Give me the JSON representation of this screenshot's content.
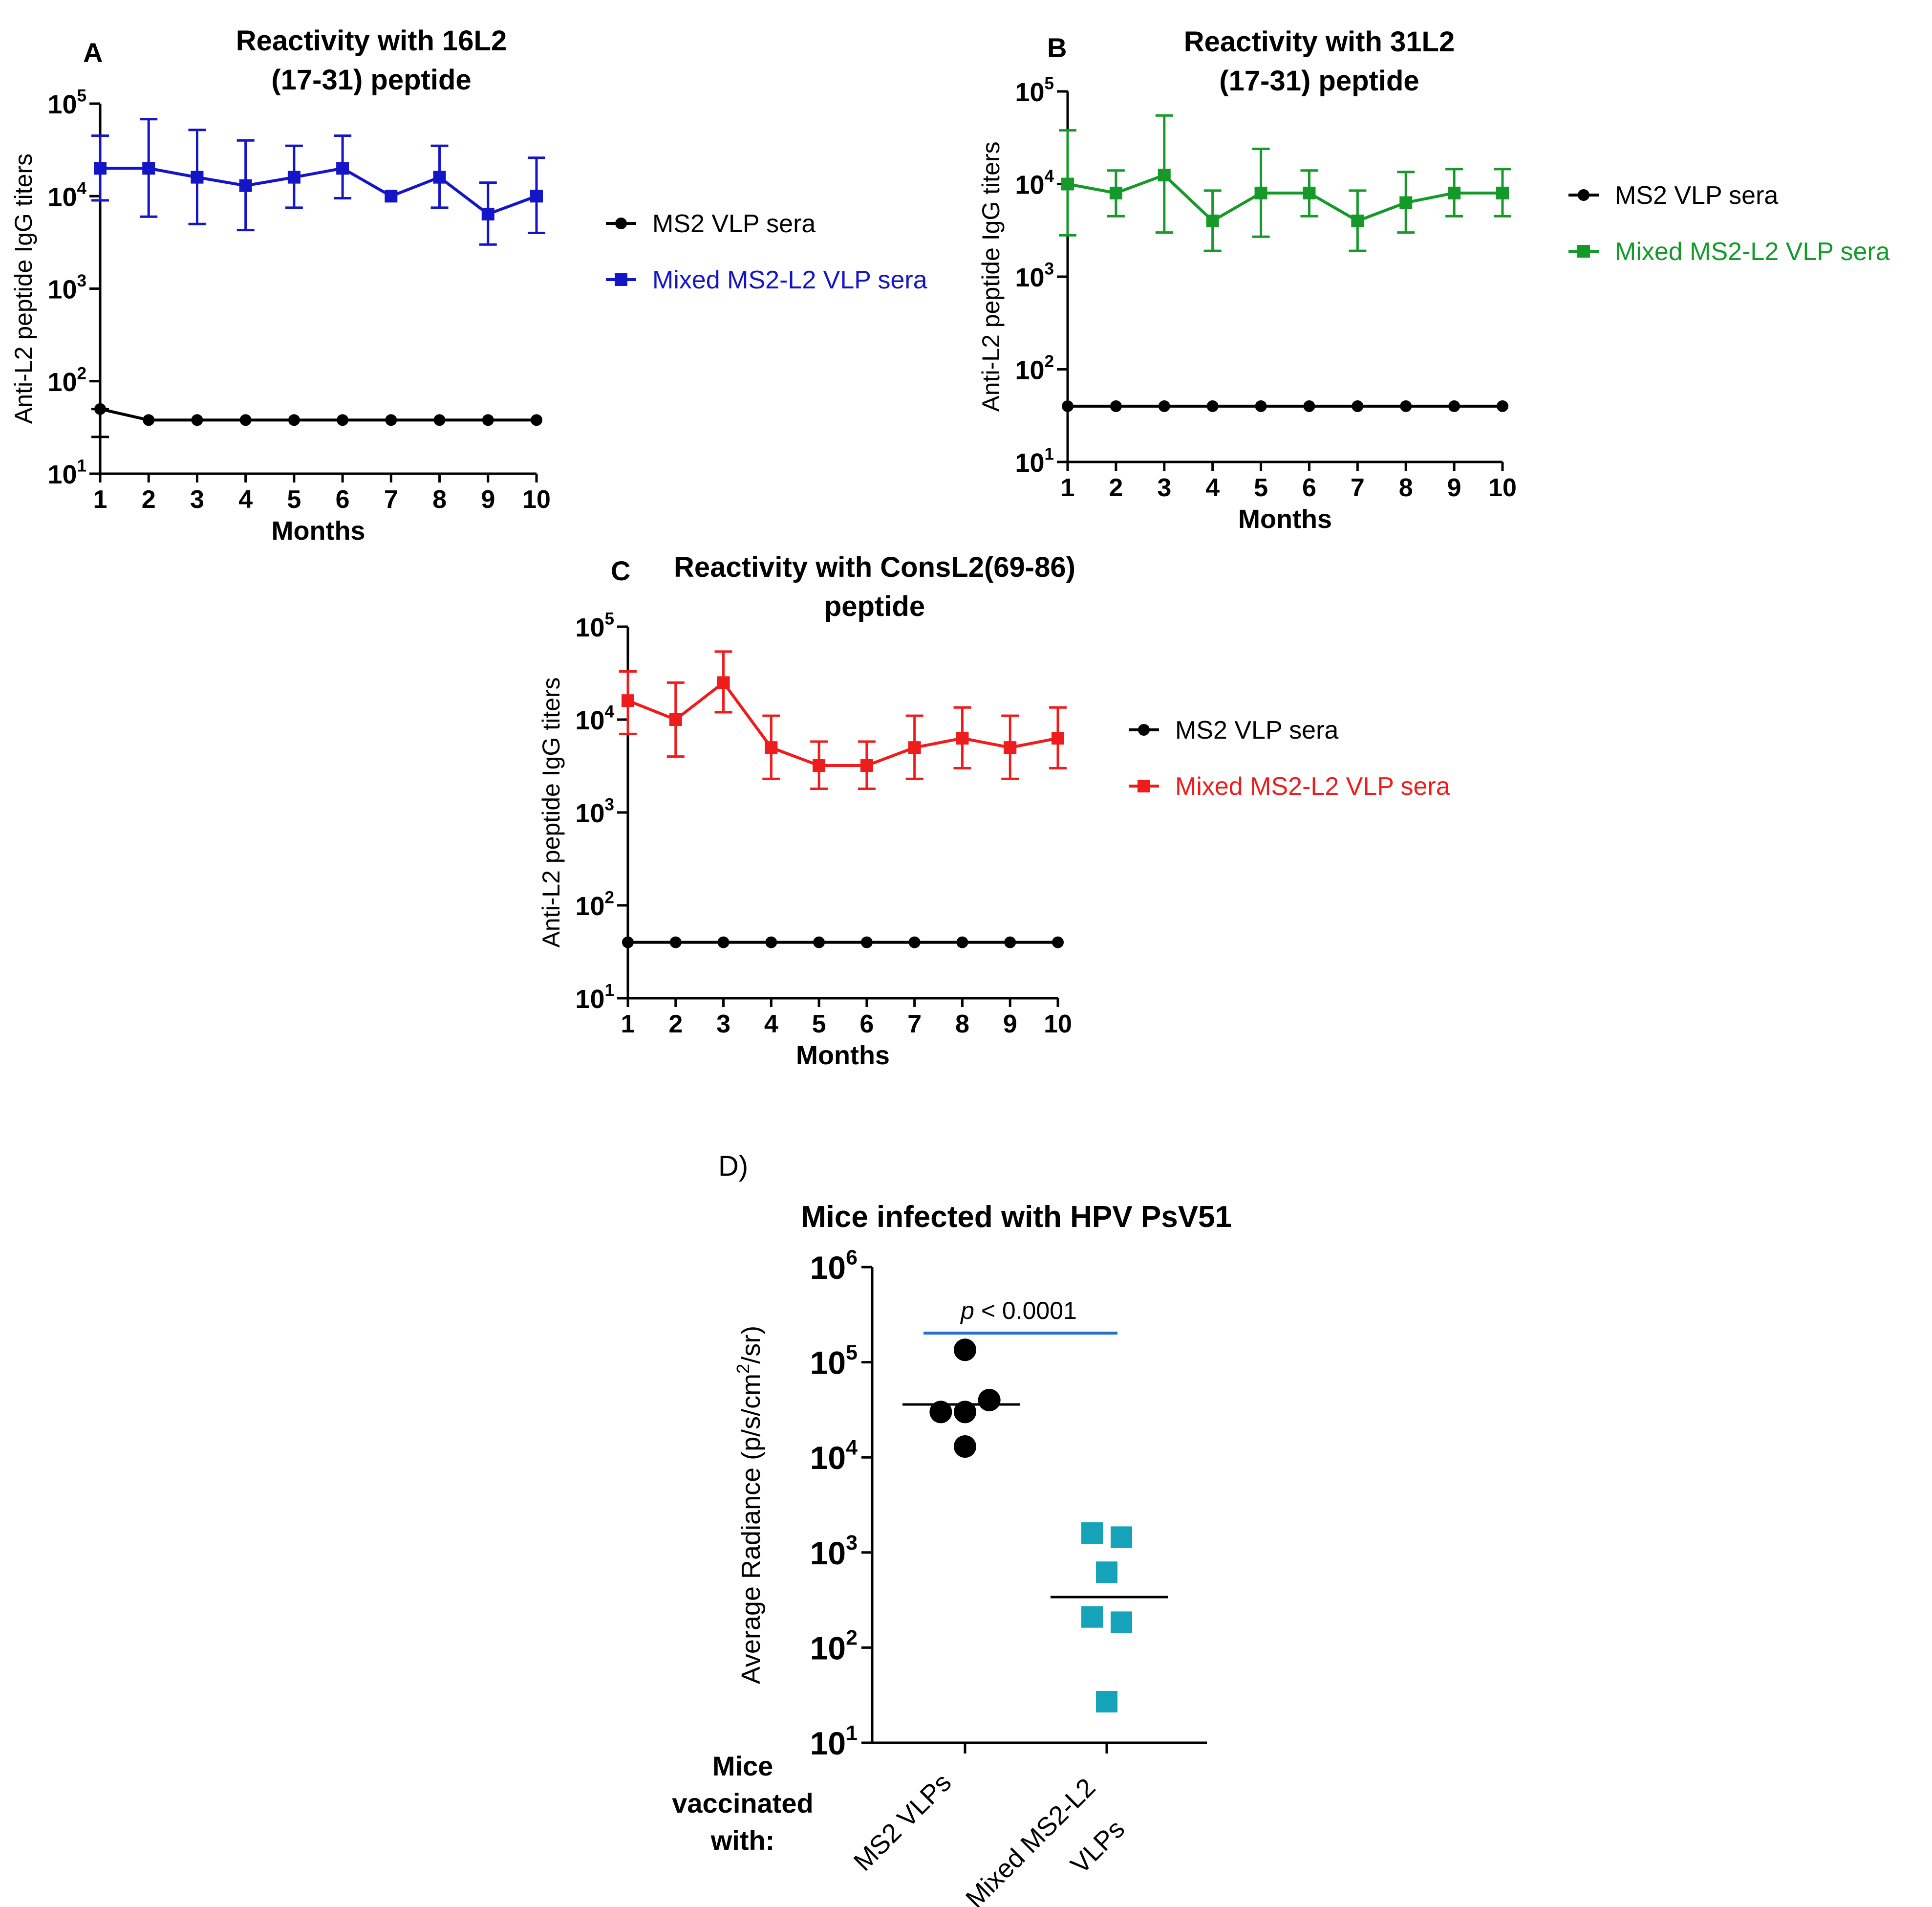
{
  "figure": {
    "panels": [
      {
        "key": "A",
        "label": "A",
        "title_lines": [
          "Reactivity with 16L2",
          "(17-31) peptide"
        ]
      },
      {
        "key": "B",
        "label": "B",
        "title_lines": [
          "Reactivity with 31L2",
          "(17-31) peptide"
        ]
      },
      {
        "key": "C",
        "label": "C",
        "title_lines": [
          "Reactivity with ConsL2(69-86)",
          "peptide"
        ]
      },
      {
        "key": "D",
        "label": "D)",
        "title_lines": [
          "Mice infected with HPV PsV51"
        ]
      }
    ]
  },
  "chart_data": [
    {
      "panel": "A",
      "type": "line",
      "title": "Reactivity with 16L2 (17-31) peptide",
      "xlabel": "Months",
      "ylabel": "Anti-L2 peptide IgG titers",
      "yscale": "log",
      "ylim": [
        10,
        100000
      ],
      "x": [
        1,
        2,
        3,
        4,
        5,
        6,
        7,
        8,
        9,
        10
      ],
      "series": [
        {
          "name": "MS2 VLP sera",
          "color": "#000000",
          "marker": "circle",
          "values": [
            50,
            38,
            38,
            38,
            38,
            38,
            38,
            38,
            38,
            38
          ],
          "err_low": [
            25,
            38,
            38,
            38,
            38,
            38,
            38,
            38,
            38,
            38
          ],
          "err_high": [
            50,
            38,
            38,
            38,
            38,
            38,
            38,
            38,
            38,
            38
          ]
        },
        {
          "name": "Mixed MS2-L2 VLP sera",
          "color": "#1515c8",
          "marker": "square",
          "values": [
            20000,
            20000,
            16000,
            13000,
            16000,
            20000,
            10000,
            16000,
            6400,
            10000
          ],
          "err_low": [
            9000,
            6000,
            5000,
            4300,
            7500,
            9500,
            10000,
            7500,
            3000,
            4000
          ],
          "err_high": [
            45000,
            68000,
            52000,
            40000,
            35000,
            45000,
            10000,
            35000,
            14000,
            26000
          ]
        }
      ]
    },
    {
      "panel": "B",
      "type": "line",
      "title": "Reactivity with 31L2 (17-31) peptide",
      "xlabel": "Months",
      "ylabel": "Anti-L2 peptide IgG titers",
      "yscale": "log",
      "ylim": [
        10,
        100000
      ],
      "x": [
        1,
        2,
        3,
        4,
        5,
        6,
        7,
        8,
        9,
        10
      ],
      "series": [
        {
          "name": "MS2 VLP sera",
          "color": "#000000",
          "marker": "circle",
          "values": [
            40,
            40,
            40,
            40,
            40,
            40,
            40,
            40,
            40,
            40
          ],
          "err_low": [
            40,
            40,
            40,
            40,
            40,
            40,
            40,
            40,
            40,
            40
          ],
          "err_high": [
            40,
            40,
            40,
            40,
            40,
            40,
            40,
            40,
            40,
            40
          ]
        },
        {
          "name": "Mixed MS2-L2 VLP sera",
          "color": "#159a2a",
          "marker": "square",
          "values": [
            10000,
            8000,
            12500,
            4000,
            8000,
            8000,
            4000,
            6300,
            8000,
            8000
          ],
          "err_low": [
            2800,
            4500,
            3000,
            1900,
            2700,
            4500,
            1900,
            3000,
            4500,
            4500
          ],
          "err_high": [
            38000,
            14000,
            55000,
            8500,
            24000,
            14000,
            8500,
            13500,
            14500,
            14500
          ]
        }
      ]
    },
    {
      "panel": "C",
      "type": "line",
      "title": "Reactivity with ConsL2(69-86) peptide",
      "xlabel": "Months",
      "ylabel": "Anti-L2 peptide IgG titers",
      "yscale": "log",
      "ylim": [
        10,
        100000
      ],
      "x": [
        1,
        2,
        3,
        4,
        5,
        6,
        7,
        8,
        9,
        10
      ],
      "series": [
        {
          "name": "MS2 VLP sera",
          "color": "#000000",
          "marker": "circle",
          "values": [
            40,
            40,
            40,
            40,
            40,
            40,
            40,
            40,
            40,
            40
          ],
          "err_low": [
            40,
            40,
            40,
            40,
            40,
            40,
            40,
            40,
            40,
            40
          ],
          "err_high": [
            40,
            40,
            40,
            40,
            40,
            40,
            40,
            40,
            40,
            40
          ]
        },
        {
          "name": "Mixed MS2-L2 VLP sera",
          "color": "#ee1c1c",
          "marker": "square",
          "values": [
            16000,
            10000,
            25000,
            5000,
            3200,
            3200,
            5000,
            6300,
            5000,
            6300
          ],
          "err_low": [
            7000,
            4000,
            12000,
            2300,
            1800,
            1800,
            2300,
            3000,
            2300,
            3000
          ],
          "err_high": [
            33000,
            25000,
            54000,
            11000,
            5800,
            5800,
            11000,
            13500,
            11000,
            13500
          ]
        }
      ]
    },
    {
      "panel": "D",
      "type": "scatter",
      "title": "Mice infected with HPV PsV51",
      "ylabel": "Average Radiance (p/s/cm²/sr)",
      "ylabel_parts": {
        "main": "Average Radiance (p/s/cm",
        "sup": "2",
        "end": "/sr)"
      },
      "yscale": "log",
      "ylim": [
        10,
        1000000
      ],
      "x_title_lines": [
        "Mice",
        "vaccinated",
        "with:"
      ],
      "categories": [
        {
          "name": "MS2 VLPs",
          "label_lines": [
            "MS2 VLPs"
          ]
        },
        {
          "name": "Mixed MS2-L2 VLPs",
          "label_lines": [
            "Mixed MS2-L2",
            "VLPs"
          ]
        }
      ],
      "series": [
        {
          "name": "MS2 VLPs",
          "color": "#000000",
          "marker": "circle",
          "points": [
            {
              "x": 0.0,
              "y": 135000
            },
            {
              "x": -0.33,
              "y": 30000
            },
            {
              "x": 0.0,
              "y": 30000
            },
            {
              "x": 0.33,
              "y": 40000
            },
            {
              "x": 0.0,
              "y": 13000
            }
          ],
          "median": 36000
        },
        {
          "name": "Mixed MS2-L2 VLPs",
          "color": "#14a3b9",
          "marker": "square",
          "points": [
            {
              "x": -0.15,
              "y": 1600
            },
            {
              "x": 0.15,
              "y": 1450
            },
            {
              "x": 0.0,
              "y": 620
            },
            {
              "x": -0.15,
              "y": 210
            },
            {
              "x": 0.15,
              "y": 185
            },
            {
              "x": 0.0,
              "y": 27
            }
          ],
          "median": 340
        }
      ],
      "annotation": {
        "italic": "p",
        "text": " < 0.0001",
        "color": "#2172c4"
      }
    }
  ]
}
